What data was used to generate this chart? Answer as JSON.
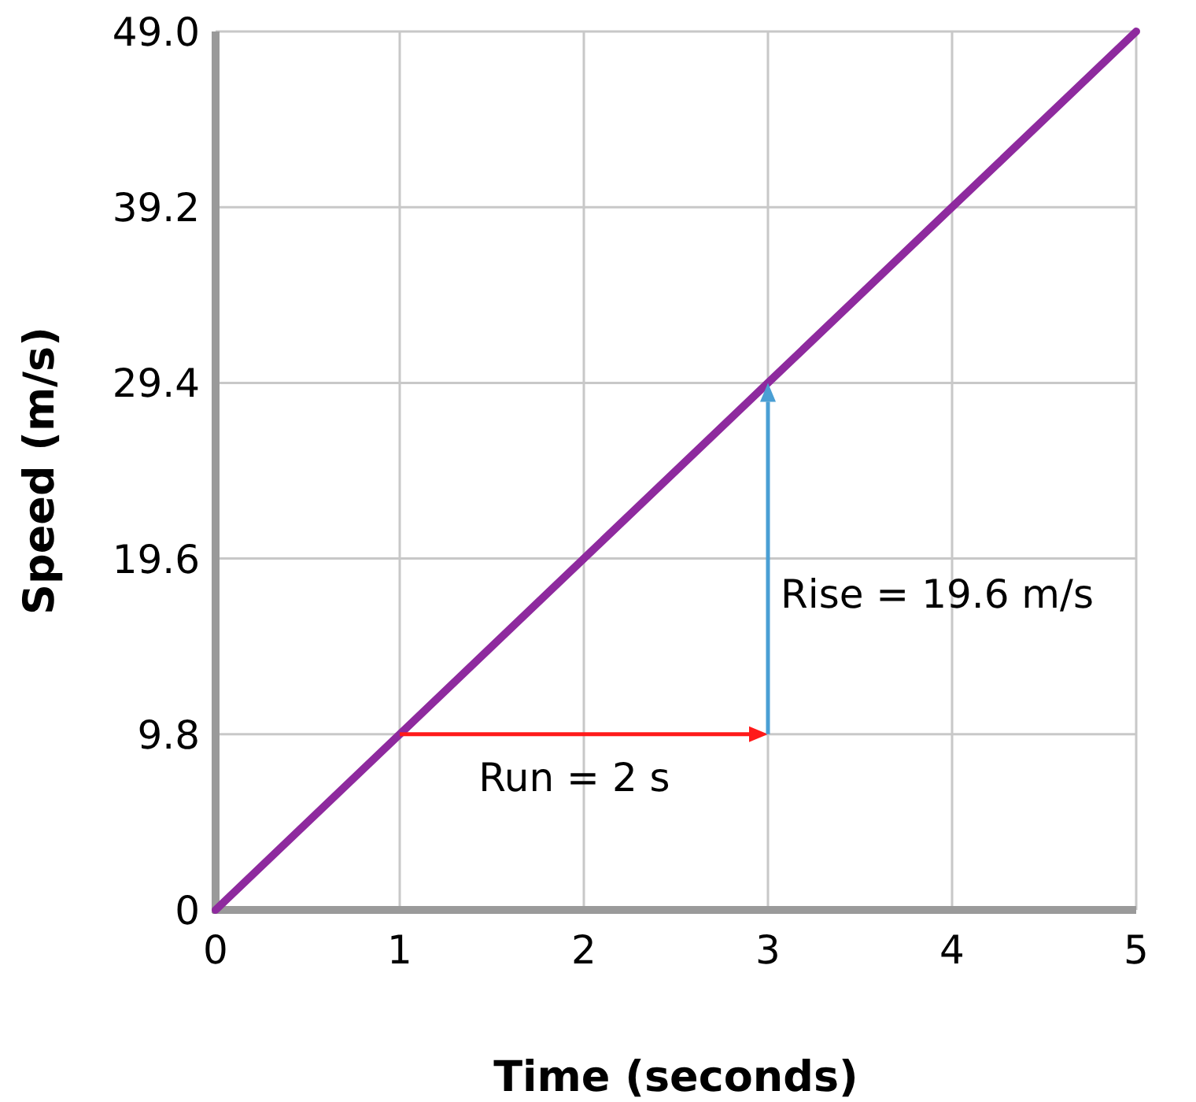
{
  "chart_data": {
    "type": "line",
    "xlabel": "Time (seconds)",
    "ylabel": "Speed (m/s)",
    "x": [
      0,
      1,
      2,
      3,
      4,
      5
    ],
    "series": [
      {
        "color": "#8e2a9e",
        "values": [
          0,
          9.8,
          19.6,
          29.4,
          39.2,
          49.0
        ]
      }
    ],
    "xlim": [
      0,
      5
    ],
    "ylim": [
      0,
      49
    ],
    "xticks": [
      0,
      1,
      2,
      3,
      4,
      5
    ],
    "yticks": [
      {
        "value": 0,
        "label": "0"
      },
      {
        "value": 9.8,
        "label": "9.8"
      },
      {
        "value": 19.6,
        "label": "19.6"
      },
      {
        "value": 29.4,
        "label": "29.4"
      },
      {
        "value": 39.2,
        "label": "39.2"
      },
      {
        "value": 49,
        "label": "49.0"
      }
    ],
    "grid": true,
    "marker": "none",
    "line_style": "solid",
    "annotations": [
      "Run = 2 s",
      "Rise = 19.6 m/s"
    ]
  }
}
